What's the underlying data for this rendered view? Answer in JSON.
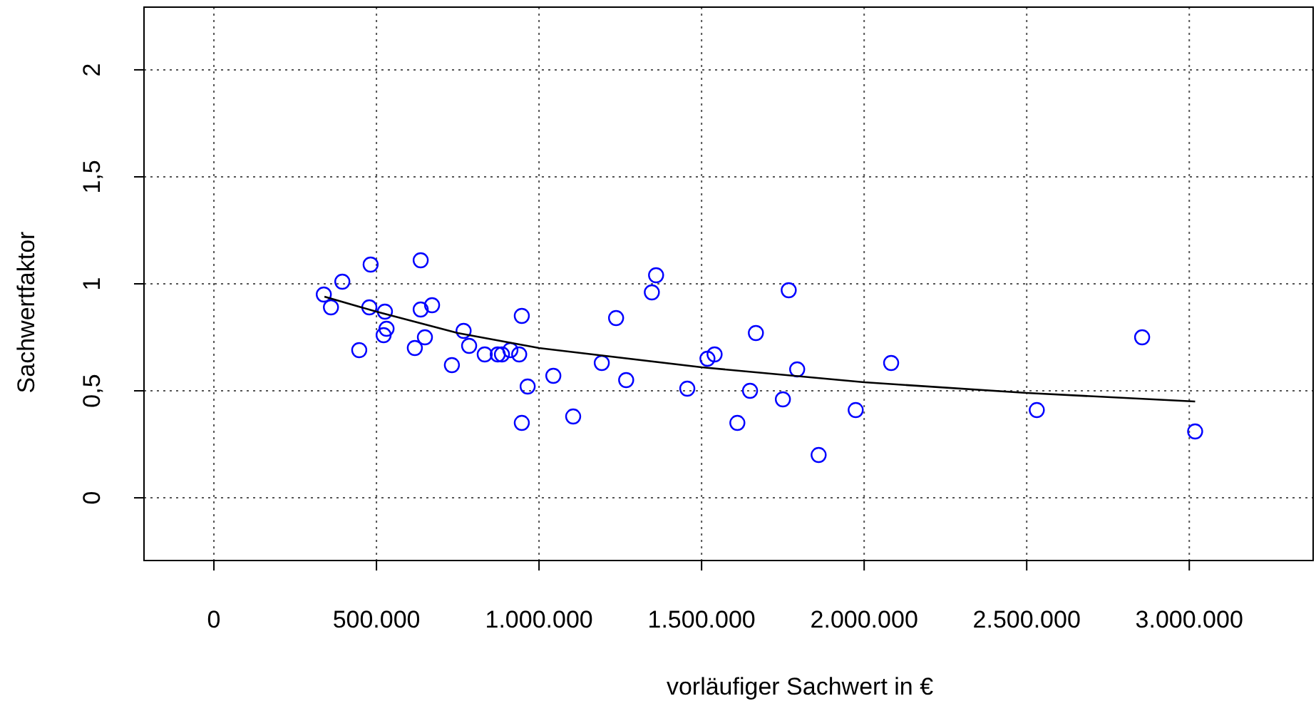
{
  "chart_data": {
    "type": "scatter",
    "xlabel": "vorläufiger Sachwert in €",
    "ylabel": "Sachwertfaktor",
    "xlim": [
      -215000,
      3381000
    ],
    "ylim": [
      -0.293,
      2.293
    ],
    "xticks": [
      0,
      {
        "value": 500000,
        "label": "500.000"
      },
      {
        "value": 1000000,
        "label": "1.000.000"
      },
      {
        "value": 1500000,
        "label": "1.500.000"
      },
      {
        "value": 2000000,
        "label": "2.000.000"
      },
      {
        "value": 2500000,
        "label": "2.500.000"
      },
      {
        "value": 3000000,
        "label": "3.000.000"
      }
    ],
    "yticks": [
      0,
      {
        "value": 0.5,
        "label": "0,5"
      },
      1,
      {
        "value": 1.5,
        "label": "1,5"
      },
      2
    ],
    "grid": true,
    "series": [
      {
        "color": "#0000ff",
        "marker": "circle",
        "x": [
          338000,
          360000,
          395000,
          447000,
          482000,
          478000,
          526000,
          531000,
          522000,
          636000,
          636000,
          671000,
          649000,
          618000,
          732000,
          768000,
          785000,
          833000,
          873000,
          886000,
          912000,
          939000,
          947000,
          965000,
          947000,
          1044000,
          1105000,
          1193000,
          1237000,
          1268000,
          1347000,
          1360000,
          1456000,
          1518000,
          1540000,
          1610000,
          1649000,
          1667000,
          1750000,
          1768000,
          1794000,
          1860000,
          1974000,
          2083000,
          2531000,
          2855000,
          3018000
        ],
        "values": [
          0.95,
          0.89,
          1.01,
          0.69,
          1.09,
          0.89,
          0.87,
          0.79,
          0.76,
          1.11,
          0.88,
          0.9,
          0.75,
          0.7,
          0.62,
          0.78,
          0.71,
          0.67,
          0.67,
          0.67,
          0.69,
          0.67,
          0.85,
          0.52,
          0.35,
          0.57,
          0.38,
          0.63,
          0.84,
          0.55,
          0.96,
          1.04,
          0.51,
          0.65,
          0.67,
          0.35,
          0.5,
          0.77,
          0.46,
          0.97,
          0.6,
          0.2,
          0.41,
          0.63,
          0.41,
          0.75,
          0.31
        ]
      },
      {
        "type": "line",
        "color": "#000000",
        "marker": "none",
        "line_style": "solid",
        "x": [
          340000,
          500000,
          750000,
          1000000,
          1500000,
          2000000,
          2500000,
          3018000
        ],
        "values": [
          0.94,
          0.87,
          0.77,
          0.7,
          0.61,
          0.54,
          0.49,
          0.45
        ]
      }
    ]
  }
}
